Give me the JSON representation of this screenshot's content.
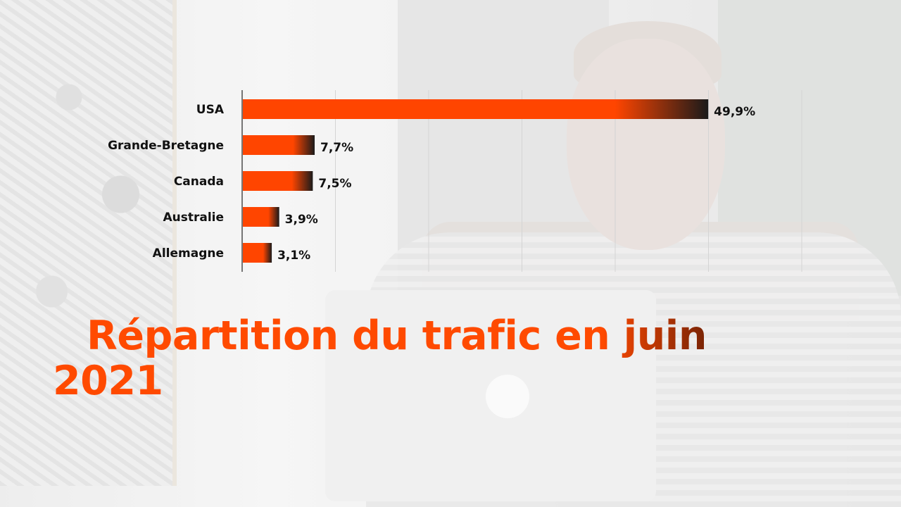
{
  "chart_data": {
    "type": "bar",
    "orientation": "horizontal",
    "title": "Répartition du trafic en juin 2021",
    "categories": [
      "USA",
      "Grande-Bretagne",
      "Canada",
      "Australie",
      "Allemagne"
    ],
    "values": [
      49.9,
      7.7,
      7.5,
      3.9,
      3.1
    ],
    "value_labels": [
      "49,9%",
      "7,7%",
      "7,5%",
      "3,9%",
      "3,1%"
    ],
    "xlim": [
      0,
      60
    ],
    "grid": true,
    "legend": "none",
    "colors": {
      "bar": "#ff4500",
      "bar_end": "#1a1a1a",
      "grid": "#d4d4d4",
      "axis": "#222222"
    }
  }
}
